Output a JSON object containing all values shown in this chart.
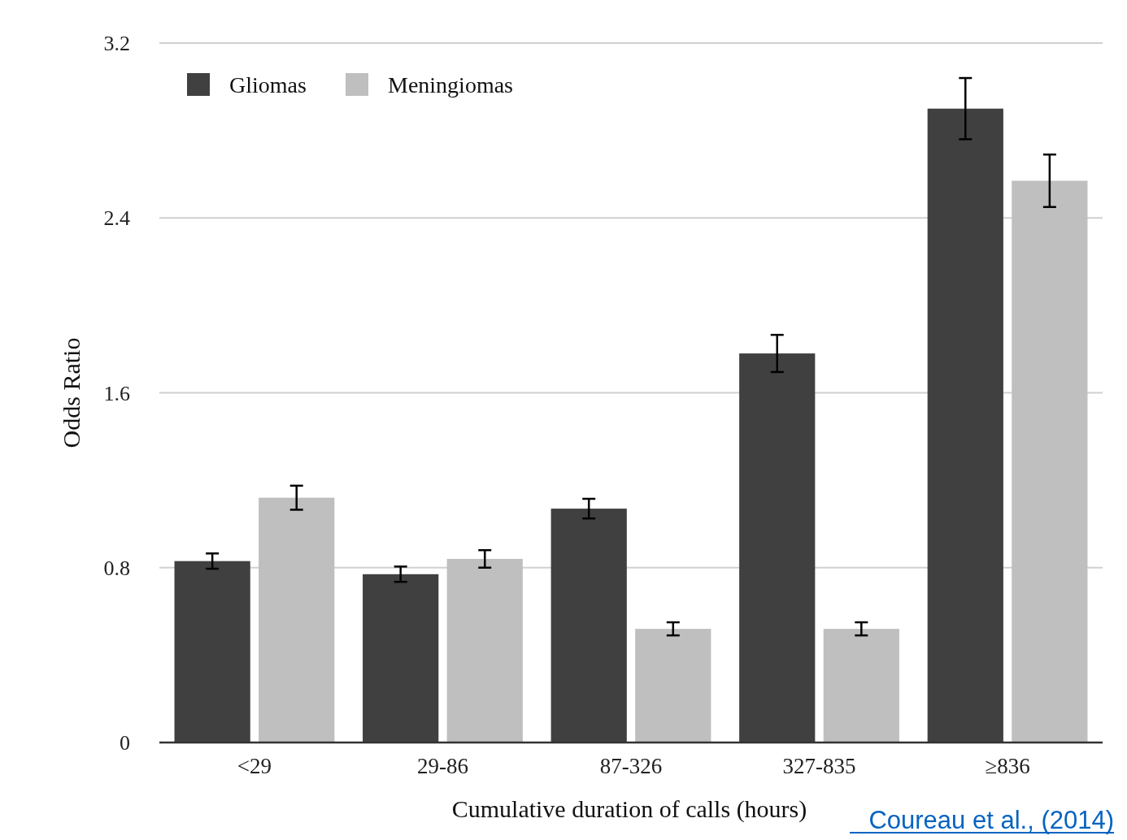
{
  "chart_data": {
    "type": "bar",
    "xlabel": "Cumulative duration of calls (hours)",
    "ylabel": "Odds Ratio",
    "categories": [
      "<29",
      "29-86",
      "87-326",
      "327-835",
      "≥836"
    ],
    "series": [
      {
        "name": "Gliomas",
        "color": "#404040",
        "values": [
          0.83,
          0.77,
          1.07,
          1.78,
          2.9
        ],
        "errors": [
          0.035,
          0.035,
          0.045,
          0.085,
          0.14
        ]
      },
      {
        "name": "Meningiomas",
        "color": "#bfbfbf",
        "values": [
          1.12,
          0.84,
          0.52,
          0.52,
          2.57
        ],
        "errors": [
          0.055,
          0.04,
          0.03,
          0.03,
          0.12
        ]
      }
    ],
    "ylim": [
      0,
      3.2
    ],
    "yticks": [
      0,
      0.8,
      1.6,
      2.4,
      3.2
    ],
    "grid": "y",
    "legend": "top left",
    "annotations": [
      "Coureau et al., (2014)"
    ]
  }
}
